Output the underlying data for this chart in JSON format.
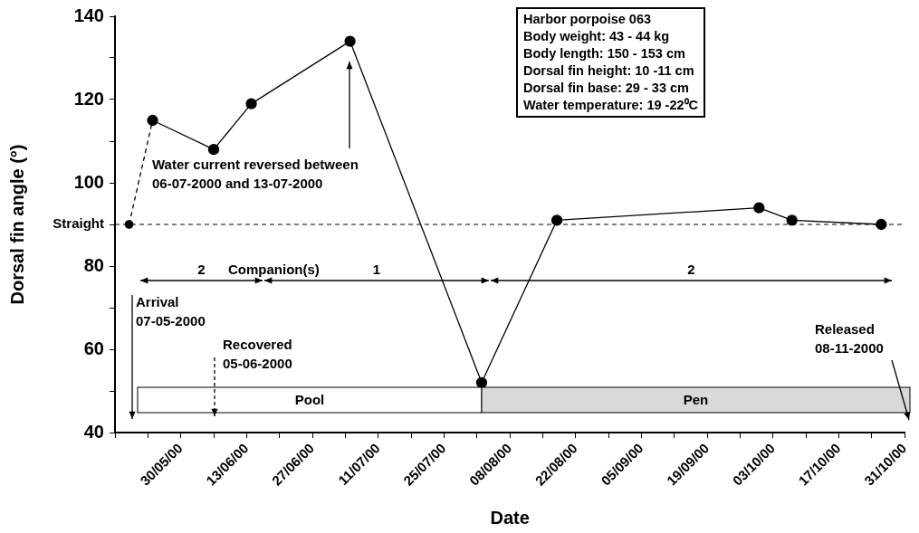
{
  "chart_data": {
    "type": "line",
    "xlabel": "Date",
    "ylabel": "Dorsal fin angle (°)",
    "series": [
      {
        "color": "#000000",
        "line_style": "dashed",
        "x": [
          "2000-05-19",
          "2000-05-24"
        ],
        "values": [
          90,
          115
        ]
      },
      {
        "color": "#000000",
        "line_style": "solid",
        "x": [
          "2000-05-24",
          "2000-06-06",
          "2000-06-14",
          "2000-07-05",
          "2000-08-02",
          "2000-08-18",
          "2000-09-30",
          "2000-10-07",
          "2000-10-26"
        ],
        "values": [
          115,
          108,
          119,
          134,
          52,
          91,
          94,
          91,
          90
        ]
      }
    ],
    "marker": "circle",
    "grid": false,
    "legend": false,
    "xlim": [
      "2000-05-16",
      "2000-10-31"
    ],
    "xticks": [
      {
        "value": "2000-05-16",
        "label": null
      },
      {
        "value": "2000-05-23",
        "label": null
      },
      {
        "value": "2000-05-30",
        "label": "30/05/00"
      },
      {
        "value": "2000-06-06",
        "label": null
      },
      {
        "value": "2000-06-13",
        "label": "13/06/00"
      },
      {
        "value": "2000-06-20",
        "label": null
      },
      {
        "value": "2000-06-27",
        "label": "27/06/00"
      },
      {
        "value": "2000-07-04",
        "label": null
      },
      {
        "value": "2000-07-11",
        "label": "11/07/00"
      },
      {
        "value": "2000-07-18",
        "label": null
      },
      {
        "value": "2000-07-25",
        "label": "25/07/00"
      },
      {
        "value": "2000-08-01",
        "label": null
      },
      {
        "value": "2000-08-08",
        "label": "08/08/00"
      },
      {
        "value": "2000-08-15",
        "label": null
      },
      {
        "value": "2000-08-22",
        "label": "22/08/00"
      },
      {
        "value": "2000-08-29",
        "label": null
      },
      {
        "value": "2000-09-05",
        "label": "05/09/00"
      },
      {
        "value": "2000-09-12",
        "label": null
      },
      {
        "value": "2000-09-19",
        "label": "19/09/00"
      },
      {
        "value": "2000-09-26",
        "label": null
      },
      {
        "value": "2000-10-03",
        "label": "03/10/00"
      },
      {
        "value": "2000-10-10",
        "label": null
      },
      {
        "value": "2000-10-17",
        "label": "17/10/00"
      },
      {
        "value": "2000-10-24",
        "label": null
      },
      {
        "value": "2000-10-31",
        "label": "31/10/00"
      }
    ],
    "ylim": [
      40,
      140
    ],
    "yticks": [
      40,
      {
        "value": 50,
        "label": null
      },
      60,
      {
        "value": 70,
        "label": null
      },
      80,
      {
        "value": 90,
        "label": null
      },
      100,
      {
        "value": 110,
        "label": null
      },
      120,
      {
        "value": 130,
        "label": null
      },
      140
    ],
    "ref_lines": [
      {
        "axis": "y",
        "value": 90,
        "label": "Straight",
        "line_style": "dashed",
        "color": "#000000"
      }
    ],
    "annotations": [
      "Harbor porpoise 063\nBody weight: 43 - 44 kg\nBody length: 150 - 153 cm\nDorsal fin height: 10 -11 cm\nDorsal fin base: 29 - 33 cm\nWater temperature: 19 -22⁰C",
      "Companion(s)",
      "2",
      "1",
      "2",
      "Pool",
      "Pen",
      "Arrival\n07-05-2000",
      "Recovered\n05-06-2000",
      "Released\n08-11-2000",
      "Water current reversed between\n06-07-2000 and 13-07-2000"
    ]
  }
}
